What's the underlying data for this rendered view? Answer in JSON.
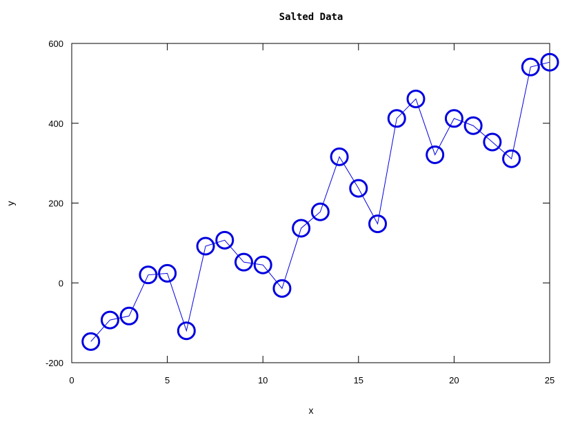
{
  "chart_data": {
    "type": "line",
    "title": "Salted Data",
    "xlabel": "x",
    "ylabel": "y",
    "xlim": [
      0,
      25
    ],
    "ylim": [
      -200,
      600
    ],
    "xticks": [
      0,
      5,
      10,
      15,
      20,
      25
    ],
    "yticks": [
      -200,
      0,
      200,
      400,
      600
    ],
    "grid": false,
    "colors": {
      "series": "#0000e0",
      "axes": "#000000",
      "background": "#ffffff"
    },
    "series": [
      {
        "marker": "circle",
        "x": [
          1,
          2,
          3,
          4,
          5,
          6,
          7,
          8,
          9,
          10,
          11,
          12,
          13,
          14,
          15,
          16,
          17,
          18,
          19,
          20,
          21,
          22,
          23,
          24,
          25
        ],
        "y": [
          -147,
          -93,
          -83,
          20,
          24,
          -120,
          92,
          107,
          52,
          45,
          -14,
          137,
          178,
          316,
          237,
          148,
          412,
          461,
          321,
          412,
          394,
          353,
          311,
          541,
          553
        ]
      }
    ]
  }
}
